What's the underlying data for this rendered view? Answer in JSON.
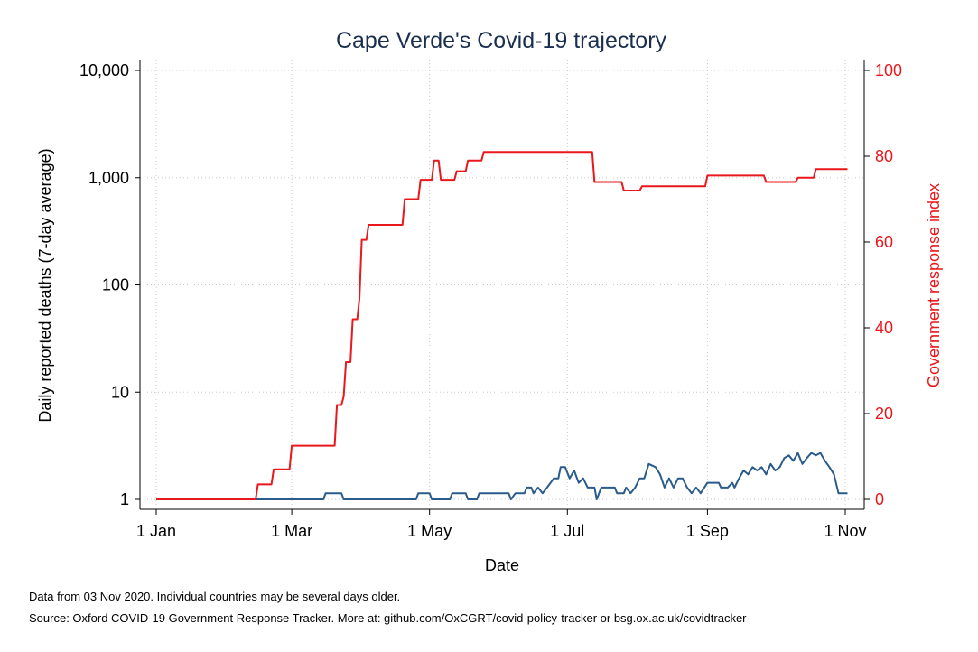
{
  "chart_data": {
    "type": "line",
    "title": "Cape Verde's Covid-19 trajectory",
    "xlabel": "Date",
    "ylabel_left": "Daily reported deaths (7-day average)",
    "ylabel_right": "Government response index",
    "x_ticks": [
      "1 Jan",
      "1 Mar",
      "1 May",
      "1 Jul",
      "1 Sep",
      "1 Nov"
    ],
    "y_left_scale": "log",
    "y_left_ticks": [
      "1",
      "10",
      "100",
      "1,000",
      "10,000"
    ],
    "y_left_range": [
      1,
      10000
    ],
    "y_right_ticks": [
      "0",
      "20",
      "40",
      "60",
      "80",
      "100"
    ],
    "y_right_range": [
      0,
      100
    ],
    "grid": true,
    "colors": {
      "deaths": "#2a5b8a",
      "response": "#e8181d",
      "right_axis": "#e8181d",
      "title": "#1a2f4f"
    },
    "series": [
      {
        "key": "deaths",
        "axis": "left",
        "points": [
          [
            "2020-01-01",
            1
          ],
          [
            "2020-03-15",
            1
          ],
          [
            "2020-03-16",
            1.14
          ],
          [
            "2020-03-23",
            1.14
          ],
          [
            "2020-03-24",
            1
          ],
          [
            "2020-04-25",
            1
          ],
          [
            "2020-04-26",
            1.14
          ],
          [
            "2020-05-01",
            1.14
          ],
          [
            "2020-05-02",
            1
          ],
          [
            "2020-05-10",
            1
          ],
          [
            "2020-05-11",
            1.14
          ],
          [
            "2020-05-17",
            1.14
          ],
          [
            "2020-05-18",
            1
          ],
          [
            "2020-05-22",
            1
          ],
          [
            "2020-05-23",
            1.14
          ],
          [
            "2020-06-05",
            1.14
          ],
          [
            "2020-06-06",
            1
          ],
          [
            "2020-06-08",
            1.14
          ],
          [
            "2020-06-12",
            1.14
          ],
          [
            "2020-06-13",
            1.29
          ],
          [
            "2020-06-15",
            1.29
          ],
          [
            "2020-06-16",
            1.14
          ],
          [
            "2020-06-18",
            1.29
          ],
          [
            "2020-06-20",
            1.14
          ],
          [
            "2020-06-22",
            1.29
          ],
          [
            "2020-06-25",
            1.57
          ],
          [
            "2020-06-27",
            1.57
          ],
          [
            "2020-06-28",
            2
          ],
          [
            "2020-06-30",
            2
          ],
          [
            "2020-07-02",
            1.57
          ],
          [
            "2020-07-04",
            1.86
          ],
          [
            "2020-07-06",
            1.43
          ],
          [
            "2020-07-08",
            1.57
          ],
          [
            "2020-07-10",
            1.29
          ],
          [
            "2020-07-13",
            1.29
          ],
          [
            "2020-07-14",
            1
          ],
          [
            "2020-07-16",
            1.29
          ],
          [
            "2020-07-22",
            1.29
          ],
          [
            "2020-07-23",
            1.14
          ],
          [
            "2020-07-26",
            1.14
          ],
          [
            "2020-07-27",
            1.29
          ],
          [
            "2020-07-29",
            1.14
          ],
          [
            "2020-07-31",
            1.29
          ],
          [
            "2020-08-02",
            1.57
          ],
          [
            "2020-08-04",
            1.57
          ],
          [
            "2020-08-06",
            2.14
          ],
          [
            "2020-08-09",
            2
          ],
          [
            "2020-08-11",
            1.71
          ],
          [
            "2020-08-13",
            1.29
          ],
          [
            "2020-08-15",
            1.57
          ],
          [
            "2020-08-17",
            1.29
          ],
          [
            "2020-08-19",
            1.57
          ],
          [
            "2020-08-21",
            1.57
          ],
          [
            "2020-08-23",
            1.29
          ],
          [
            "2020-08-25",
            1.14
          ],
          [
            "2020-08-27",
            1.29
          ],
          [
            "2020-08-29",
            1.14
          ],
          [
            "2020-09-01",
            1.43
          ],
          [
            "2020-09-06",
            1.43
          ],
          [
            "2020-09-07",
            1.29
          ],
          [
            "2020-09-10",
            1.29
          ],
          [
            "2020-09-12",
            1.43
          ],
          [
            "2020-09-13",
            1.29
          ],
          [
            "2020-09-15",
            1.57
          ],
          [
            "2020-09-17",
            1.86
          ],
          [
            "2020-09-19",
            1.71
          ],
          [
            "2020-09-21",
            2
          ],
          [
            "2020-09-23",
            1.86
          ],
          [
            "2020-09-25",
            2
          ],
          [
            "2020-09-27",
            1.71
          ],
          [
            "2020-09-29",
            2.14
          ],
          [
            "2020-10-01",
            1.86
          ],
          [
            "2020-10-03",
            2
          ],
          [
            "2020-10-05",
            2.43
          ],
          [
            "2020-10-07",
            2.57
          ],
          [
            "2020-10-09",
            2.29
          ],
          [
            "2020-10-11",
            2.71
          ],
          [
            "2020-10-13",
            2.14
          ],
          [
            "2020-10-15",
            2.43
          ],
          [
            "2020-10-17",
            2.71
          ],
          [
            "2020-10-19",
            2.57
          ],
          [
            "2020-10-21",
            2.71
          ],
          [
            "2020-10-23",
            2.29
          ],
          [
            "2020-10-25",
            2
          ],
          [
            "2020-10-27",
            1.71
          ],
          [
            "2020-10-29",
            1.14
          ],
          [
            "2020-11-02",
            1.14
          ]
        ]
      },
      {
        "key": "response",
        "axis": "right",
        "points": [
          [
            "2020-01-01",
            0
          ],
          [
            "2020-02-14",
            0
          ],
          [
            "2020-02-15",
            3.5
          ],
          [
            "2020-02-21",
            3.5
          ],
          [
            "2020-02-22",
            7
          ],
          [
            "2020-02-29",
            7
          ],
          [
            "2020-03-01",
            12.5
          ],
          [
            "2020-03-20",
            12.5
          ],
          [
            "2020-03-21",
            22
          ],
          [
            "2020-03-23",
            22
          ],
          [
            "2020-03-24",
            24
          ],
          [
            "2020-03-25",
            32
          ],
          [
            "2020-03-27",
            32
          ],
          [
            "2020-03-28",
            42
          ],
          [
            "2020-03-30",
            42
          ],
          [
            "2020-03-31",
            47
          ],
          [
            "2020-04-01",
            60.5
          ],
          [
            "2020-04-03",
            60.5
          ],
          [
            "2020-04-04",
            64
          ],
          [
            "2020-04-19",
            64
          ],
          [
            "2020-04-20",
            70
          ],
          [
            "2020-04-26",
            70
          ],
          [
            "2020-04-27",
            74.5
          ],
          [
            "2020-05-02",
            74.5
          ],
          [
            "2020-05-03",
            79
          ],
          [
            "2020-05-05",
            79
          ],
          [
            "2020-05-06",
            74.5
          ],
          [
            "2020-05-12",
            74.5
          ],
          [
            "2020-05-13",
            76.5
          ],
          [
            "2020-05-17",
            76.5
          ],
          [
            "2020-05-18",
            79
          ],
          [
            "2020-05-24",
            79
          ],
          [
            "2020-05-25",
            81
          ],
          [
            "2020-07-12",
            81
          ],
          [
            "2020-07-13",
            74
          ],
          [
            "2020-07-25",
            74
          ],
          [
            "2020-07-26",
            72
          ],
          [
            "2020-08-02",
            72
          ],
          [
            "2020-08-03",
            73
          ],
          [
            "2020-08-31",
            73
          ],
          [
            "2020-09-01",
            75.5
          ],
          [
            "2020-09-26",
            75.5
          ],
          [
            "2020-09-27",
            74
          ],
          [
            "2020-10-10",
            74
          ],
          [
            "2020-10-11",
            75
          ],
          [
            "2020-10-18",
            75
          ],
          [
            "2020-10-19",
            77
          ],
          [
            "2020-11-02",
            77
          ]
        ]
      }
    ]
  },
  "notes": {
    "line1": "Data from 03 Nov 2020. Individual countries may be several days older.",
    "line2": "Source: Oxford COVID-19 Government Response Tracker. More at: github.com/OxCGRT/covid-policy-tracker or bsg.ox.ac.uk/covidtracker"
  }
}
